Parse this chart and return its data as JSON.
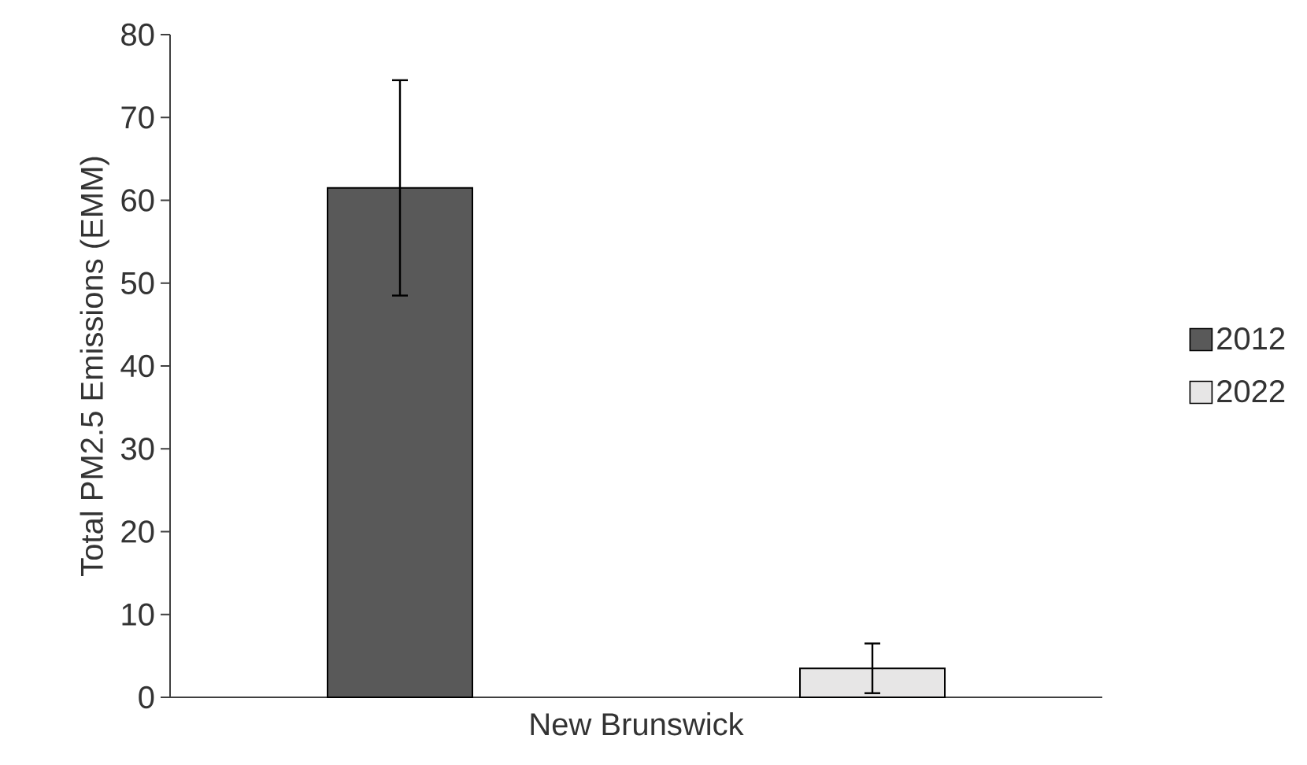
{
  "chart_data": {
    "type": "bar",
    "ylabel": "Total PM2.5 Emissions (EMM)",
    "categories": [
      "New Brunswick"
    ],
    "series": [
      {
        "name": "2012",
        "color": "#595959",
        "values": [
          61.5
        ],
        "errors": [
          13
        ]
      },
      {
        "name": "2022",
        "color": "#e7e6e6",
        "values": [
          3.5
        ],
        "errors": [
          3
        ]
      }
    ],
    "ylim": [
      0,
      80
    ],
    "yticks": [
      0,
      10,
      20,
      30,
      40,
      50,
      60,
      70,
      80
    ],
    "legend": "right",
    "grid": false
  }
}
